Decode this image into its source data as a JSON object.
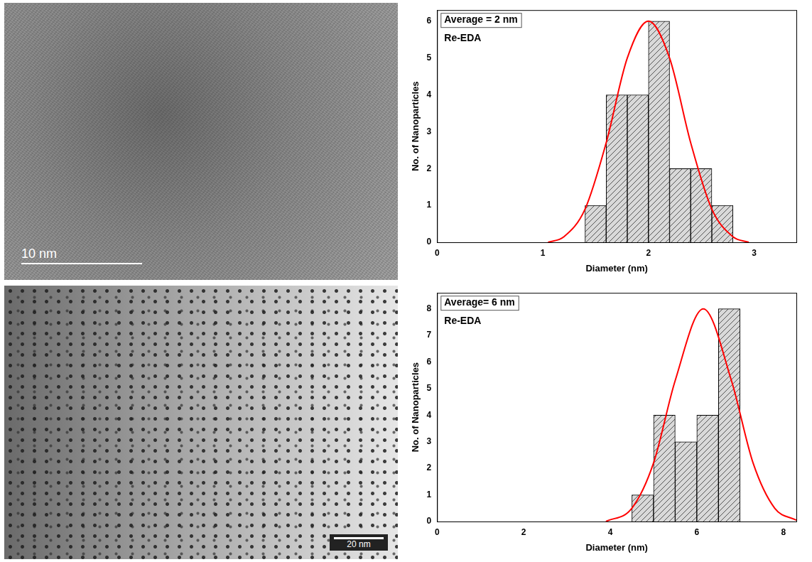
{
  "images": [
    {
      "scale_bar": "10 nm"
    },
    {
      "scale_bar": "20 nm"
    }
  ],
  "chart_data": [
    {
      "type": "histogram",
      "annotations": [
        "Average = 2 nm",
        "Re-EDA"
      ],
      "x_label": "Diameter (nm)",
      "y_label": "No. of Nanoparticles",
      "bins": [
        1.4,
        1.6,
        1.8,
        2.0,
        2.2,
        2.4,
        2.6,
        2.8
      ],
      "values": [
        1,
        4,
        4,
        6,
        2,
        2,
        1
      ],
      "color": "#d9d9d9",
      "fit": {
        "x": [
          1.05,
          1.2,
          1.4,
          1.6,
          1.8,
          2.0,
          2.2,
          2.4,
          2.6,
          2.8,
          2.95
        ],
        "values": [
          0,
          0.15,
          0.9,
          2.7,
          5.0,
          6.0,
          5.0,
          2.7,
          0.9,
          0.15,
          0
        ],
        "color": "#ff0000"
      },
      "xlim": [
        0,
        3.4
      ],
      "xticks": [
        0,
        1,
        2,
        3
      ],
      "ylim": [
        0,
        6.3
      ],
      "yticks": [
        0,
        1,
        2,
        3,
        4,
        5,
        6
      ],
      "grid": false
    },
    {
      "type": "histogram",
      "annotations": [
        "Average= 6 nm",
        "Re-EDA"
      ],
      "x_label": "Diameter (nm)",
      "y_label": "No. of Nanoparticles",
      "bins": [
        4.5,
        5.0,
        5.5,
        6.0,
        6.5,
        7.0
      ],
      "values": [
        1,
        4,
        3,
        4,
        8
      ],
      "color": "#d9d9d9",
      "fit": {
        "x": [
          3.9,
          4.5,
          5.0,
          5.5,
          6.15,
          6.8,
          7.3,
          7.8,
          8.3
        ],
        "values": [
          0,
          0.5,
          2.2,
          5.3,
          8.0,
          5.3,
          2.2,
          0.5,
          0.05
        ],
        "color": "#ff0000"
      },
      "xlim": [
        0,
        8.3
      ],
      "xticks": [
        0,
        2,
        4,
        6,
        8
      ],
      "ylim": [
        0,
        8.6
      ],
      "yticks": [
        0,
        1,
        2,
        3,
        4,
        5,
        6,
        7,
        8
      ],
      "grid": false
    }
  ]
}
